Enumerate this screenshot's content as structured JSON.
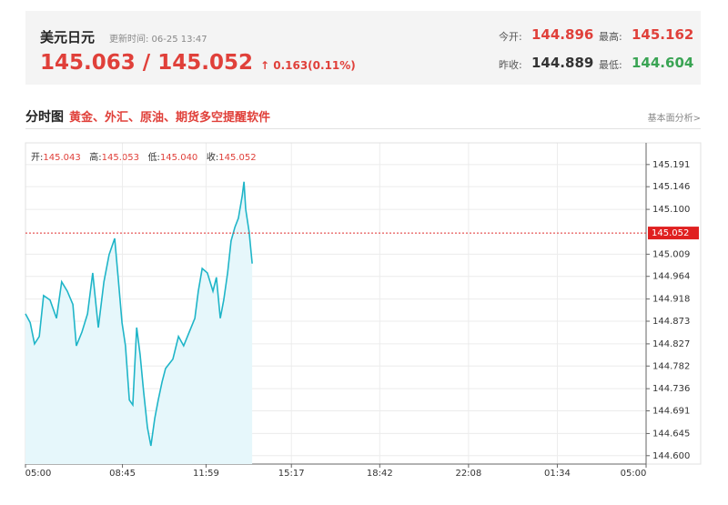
{
  "header": {
    "name": "美元日元",
    "updated": "更新时间: 06-25 13:47",
    "price": "145.063",
    "separator": "/",
    "price2": "145.052",
    "change": "↑ 0.163(0.11%)",
    "stats": [
      {
        "label": "今开:",
        "value": "144.896"
      },
      {
        "label": "最高:",
        "value": "145.162"
      },
      {
        "label": "昨收:",
        "value": "144.889"
      },
      {
        "label": "最低:",
        "value": "144.604"
      }
    ]
  },
  "section": {
    "title": "分时图",
    "promo": "黄金、外汇、原油、期货多空提醒软件",
    "link": "基本面分析>"
  },
  "ohlc": [
    {
      "label": "开:",
      "value": "145.043"
    },
    {
      "label": "高:",
      "value": "145.053"
    },
    {
      "label": "低:",
      "value": "145.040"
    },
    {
      "label": "收:",
      "value": "145.052"
    }
  ],
  "chart_data": {
    "type": "line",
    "x": [
      0,
      11,
      21,
      32,
      42,
      57,
      72,
      84,
      97,
      110,
      118,
      131,
      144,
      156,
      169,
      182,
      194,
      207,
      215,
      224,
      232,
      241,
      249,
      258,
      266,
      274,
      283,
      291,
      300,
      308,
      317,
      325,
      334,
      342,
      355,
      367,
      380,
      393,
      401,
      410,
      422,
      435,
      443,
      452,
      460,
      469,
      477,
      486,
      494,
      503,
      507,
      511,
      519,
      526
    ],
    "series": [
      {
        "color": "#1fb5c8",
        "values": [
          144.888,
          144.87,
          144.827,
          144.842,
          144.925,
          144.916,
          144.879,
          144.953,
          144.934,
          144.907,
          144.823,
          144.851,
          144.888,
          144.971,
          144.86,
          144.953,
          145.008,
          145.041,
          144.962,
          144.87,
          144.823,
          144.713,
          144.703,
          144.86,
          144.805,
          144.731,
          144.657,
          144.62,
          144.676,
          144.713,
          144.75,
          144.777,
          144.787,
          144.796,
          144.842,
          144.823,
          144.851,
          144.879,
          144.934,
          144.98,
          144.971,
          144.934,
          144.962,
          144.879,
          144.916,
          144.971,
          145.036,
          145.064,
          145.082,
          145.128,
          145.156,
          145.1,
          145.054,
          144.99
        ]
      }
    ],
    "xlim": [
      0,
      1440
    ],
    "xticks": [
      {
        "value": 0,
        "label": "05:00"
      },
      {
        "value": 225,
        "label": "08:45"
      },
      {
        "value": 419,
        "label": "11:59"
      },
      {
        "value": 617,
        "label": "15:17"
      },
      {
        "value": 822,
        "label": "18:42"
      },
      {
        "value": 1028,
        "label": "22:08"
      },
      {
        "value": 1234,
        "label": "01:34"
      },
      {
        "value": 1440,
        "label": "05:00"
      }
    ],
    "ylim": [
      144.583,
      145.235
    ],
    "yticks": [
      145.191,
      145.146,
      {
        "value": 145.1,
        "label": "145.100"
      },
      145.009,
      144.964,
      144.918,
      144.873,
      144.827,
      144.782,
      144.736,
      144.691,
      144.645,
      {
        "value": 144.6,
        "label": "144.600"
      }
    ],
    "current": 145.052,
    "grid": true
  }
}
